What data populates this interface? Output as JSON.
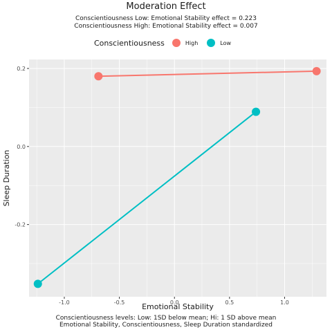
{
  "chart_data": {
    "type": "line",
    "title": "Moderation Effect",
    "subtitle": [
      "Conscientiousness Low: Emotional Stability effect = 0.223",
      "Conscientiousness High: Emotional Stability effect = 0.007"
    ],
    "xlabel": "Emotional Stability",
    "ylabel": "Sleep Duration",
    "xlim": [
      -1.32,
      1.38
    ],
    "ylim": [
      -0.385,
      0.223
    ],
    "x_ticks": [
      -1.0,
      -0.5,
      0.0,
      0.5,
      1.0
    ],
    "x_tick_labels": [
      "-1.0",
      "-0.5",
      "0.0",
      "0.5",
      "1.0"
    ],
    "y_ticks": [
      -0.2,
      0.0,
      0.2
    ],
    "y_tick_labels": [
      "-0.2",
      "0.0",
      "0.2"
    ],
    "grid": true,
    "legend": {
      "title": "Conscientiousness",
      "position": "top",
      "entries": [
        {
          "label": "High",
          "color": "#F8766D"
        },
        {
          "label": "Low",
          "color": "#00BFC4"
        }
      ]
    },
    "series": [
      {
        "name": "High",
        "color": "#F8766D",
        "points": [
          {
            "x": -0.69,
            "y": 0.18
          },
          {
            "x": 1.29,
            "y": 0.193
          }
        ]
      },
      {
        "name": "Low",
        "color": "#00BFC4",
        "points": [
          {
            "x": -1.24,
            "y": -0.352
          },
          {
            "x": 0.74,
            "y": 0.089
          }
        ]
      }
    ],
    "caption": [
      "Conscientiousness levels: Low: 1SD below mean; Hi: 1 SD above mean",
      "Emotional Stability, Conscientiousness, Sleep Duration standardized"
    ],
    "panel_background": "#EBEBEB",
    "grid_color": "#FFFFFF"
  }
}
